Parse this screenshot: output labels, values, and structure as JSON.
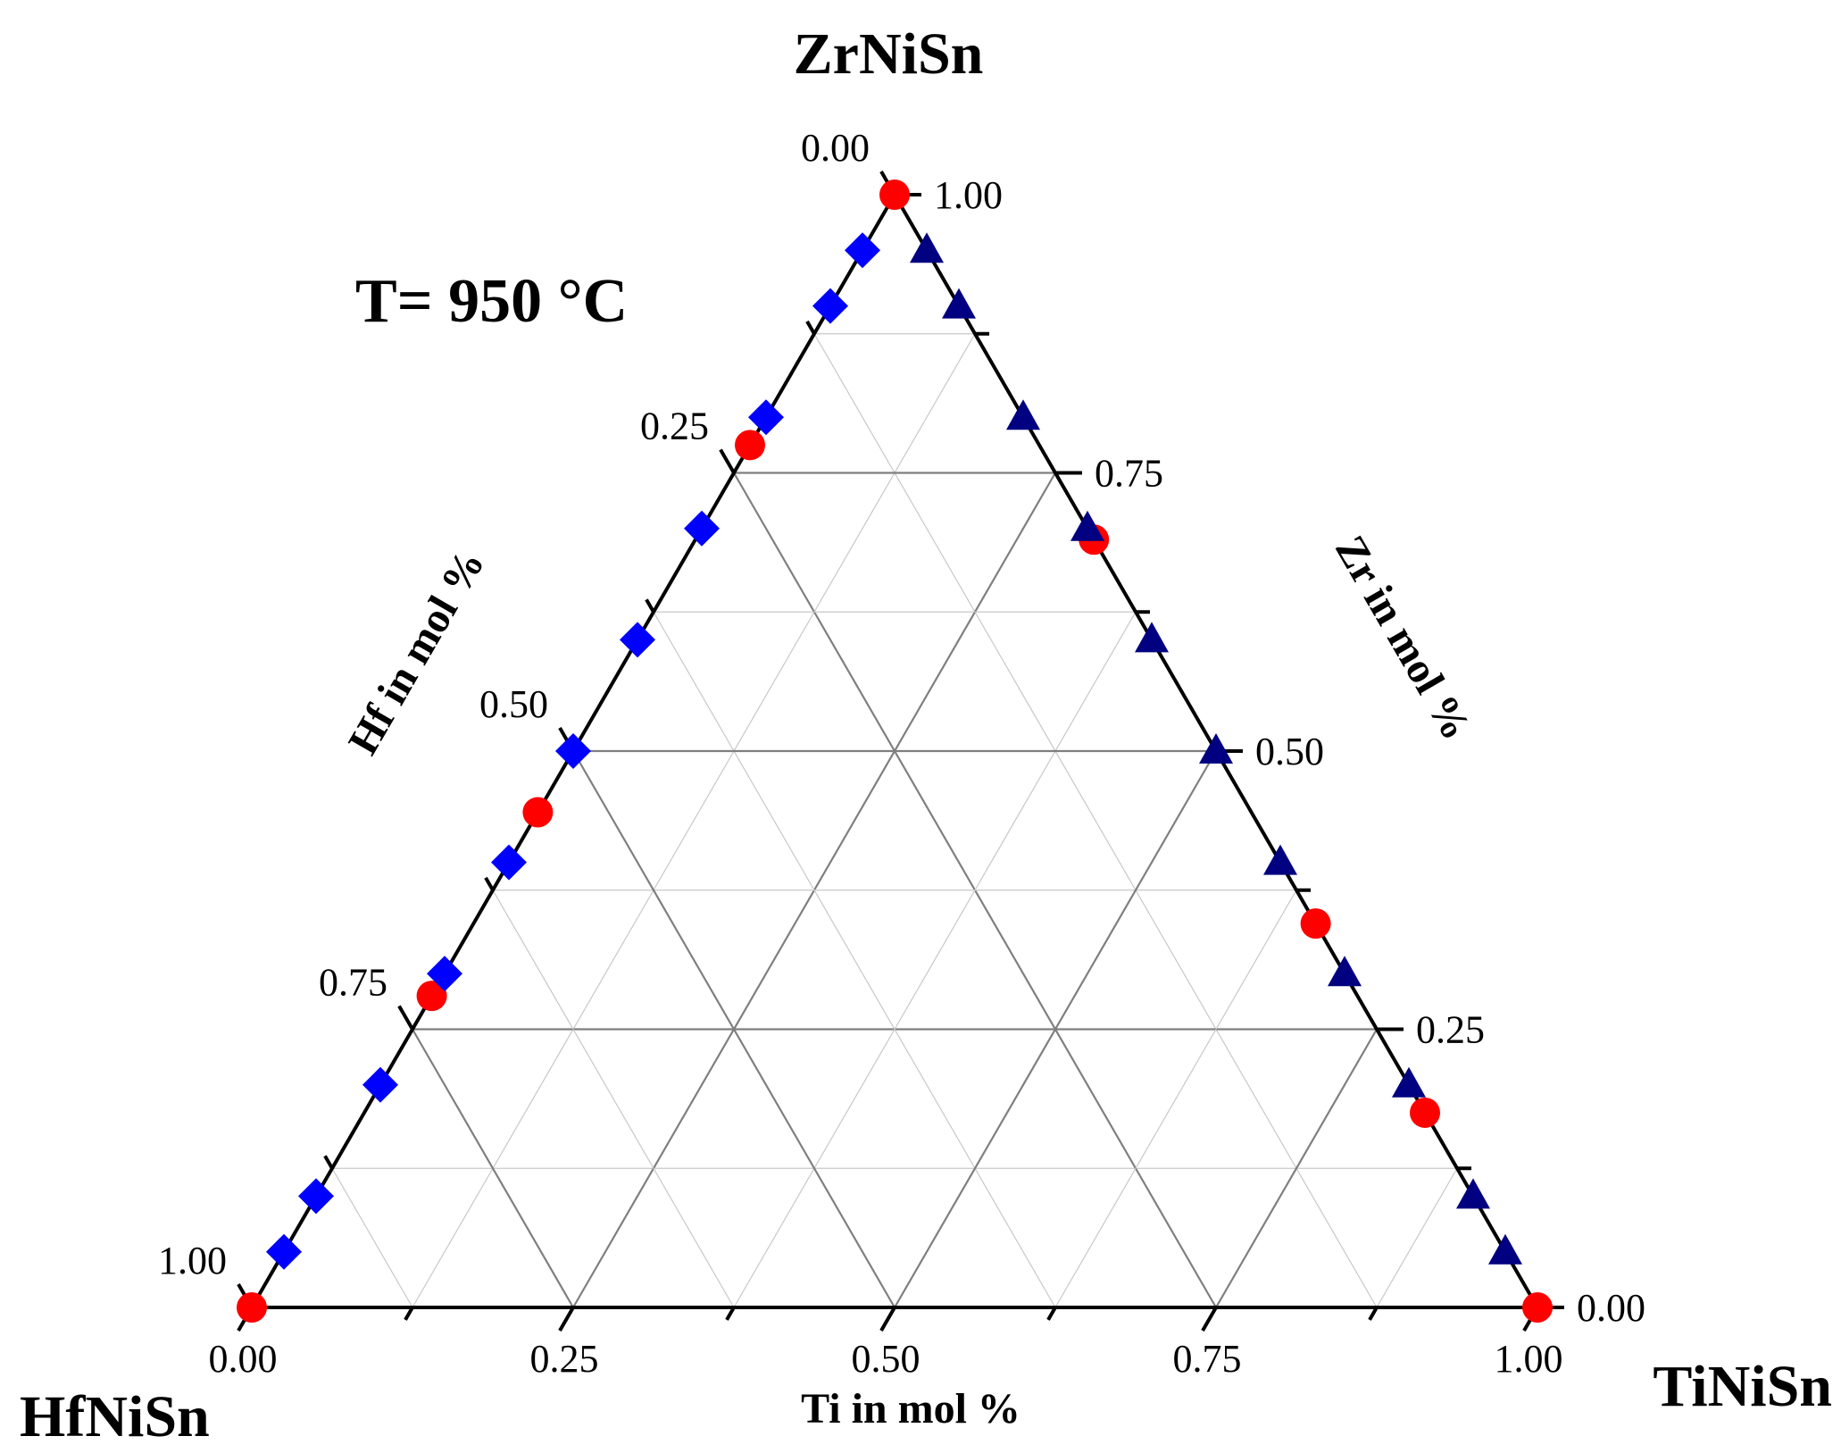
{
  "chart_data": {
    "type": "scatter",
    "subtype": "ternary",
    "annotation": "T= 950 °C",
    "vertices": {
      "top": "ZrNiSn",
      "left": "HfNiSn",
      "right": "TiNiSn"
    },
    "axes": {
      "bottom": {
        "label": "Ti in mol %",
        "ticks": [
          "0.00",
          "0.25",
          "0.50",
          "0.75",
          "1.00"
        ]
      },
      "left": {
        "label": "Hf in mol %",
        "ticks": [
          "0.00",
          "0.25",
          "0.50",
          "0.75",
          "1.00"
        ]
      },
      "right": {
        "label": "Zr in mol %",
        "ticks": [
          "0.00",
          "0.25",
          "0.50",
          "0.75",
          "1.00"
        ]
      }
    },
    "range": [
      0,
      1
    ],
    "grid": true,
    "series": [
      {
        "marker": "circle",
        "color": "#ff0000",
        "points": [
          {
            "hf": 0.0,
            "zr": 1.0,
            "ti": 0.0
          },
          {
            "hf": 0.225,
            "zr": 0.775,
            "ti": 0.0
          },
          {
            "hf": 0.555,
            "zr": 0.445,
            "ti": 0.0
          },
          {
            "hf": 0.72,
            "zr": 0.28,
            "ti": 0.0
          },
          {
            "hf": 1.0,
            "zr": 0.0,
            "ti": 0.0
          },
          {
            "hf": 0.0,
            "zr": 0.69,
            "ti": 0.31
          },
          {
            "hf": 0.0,
            "zr": 0.345,
            "ti": 0.655
          },
          {
            "hf": 0.0,
            "zr": 0.175,
            "ti": 0.825
          },
          {
            "hf": 0.0,
            "zr": 0.0,
            "ti": 1.0
          }
        ]
      },
      {
        "marker": "diamond",
        "color": "#0000ff",
        "points": [
          {
            "hf": 0.05,
            "zr": 0.95,
            "ti": 0.0
          },
          {
            "hf": 0.1,
            "zr": 0.9,
            "ti": 0.0
          },
          {
            "hf": 0.2,
            "zr": 0.8,
            "ti": 0.0
          },
          {
            "hf": 0.3,
            "zr": 0.7,
            "ti": 0.0
          },
          {
            "hf": 0.4,
            "zr": 0.6,
            "ti": 0.0
          },
          {
            "hf": 0.5,
            "zr": 0.5,
            "ti": 0.0
          },
          {
            "hf": 0.6,
            "zr": 0.4,
            "ti": 0.0
          },
          {
            "hf": 0.7,
            "zr": 0.3,
            "ti": 0.0
          },
          {
            "hf": 0.8,
            "zr": 0.2,
            "ti": 0.0
          },
          {
            "hf": 0.9,
            "zr": 0.1,
            "ti": 0.0
          },
          {
            "hf": 0.95,
            "zr": 0.05,
            "ti": 0.0
          }
        ]
      },
      {
        "marker": "triangle",
        "color": "#000080",
        "points": [
          {
            "hf": 0.0,
            "zr": 0.95,
            "ti": 0.05
          },
          {
            "hf": 0.0,
            "zr": 0.9,
            "ti": 0.1
          },
          {
            "hf": 0.0,
            "zr": 0.8,
            "ti": 0.2
          },
          {
            "hf": 0.0,
            "zr": 0.7,
            "ti": 0.3
          },
          {
            "hf": 0.0,
            "zr": 0.6,
            "ti": 0.4
          },
          {
            "hf": 0.0,
            "zr": 0.5,
            "ti": 0.5
          },
          {
            "hf": 0.0,
            "zr": 0.4,
            "ti": 0.6
          },
          {
            "hf": 0.0,
            "zr": 0.3,
            "ti": 0.7
          },
          {
            "hf": 0.0,
            "zr": 0.2,
            "ti": 0.8
          },
          {
            "hf": 0.0,
            "zr": 0.1,
            "ti": 0.9
          },
          {
            "hf": 0.0,
            "zr": 0.05,
            "ti": 0.95
          }
        ]
      }
    ]
  }
}
